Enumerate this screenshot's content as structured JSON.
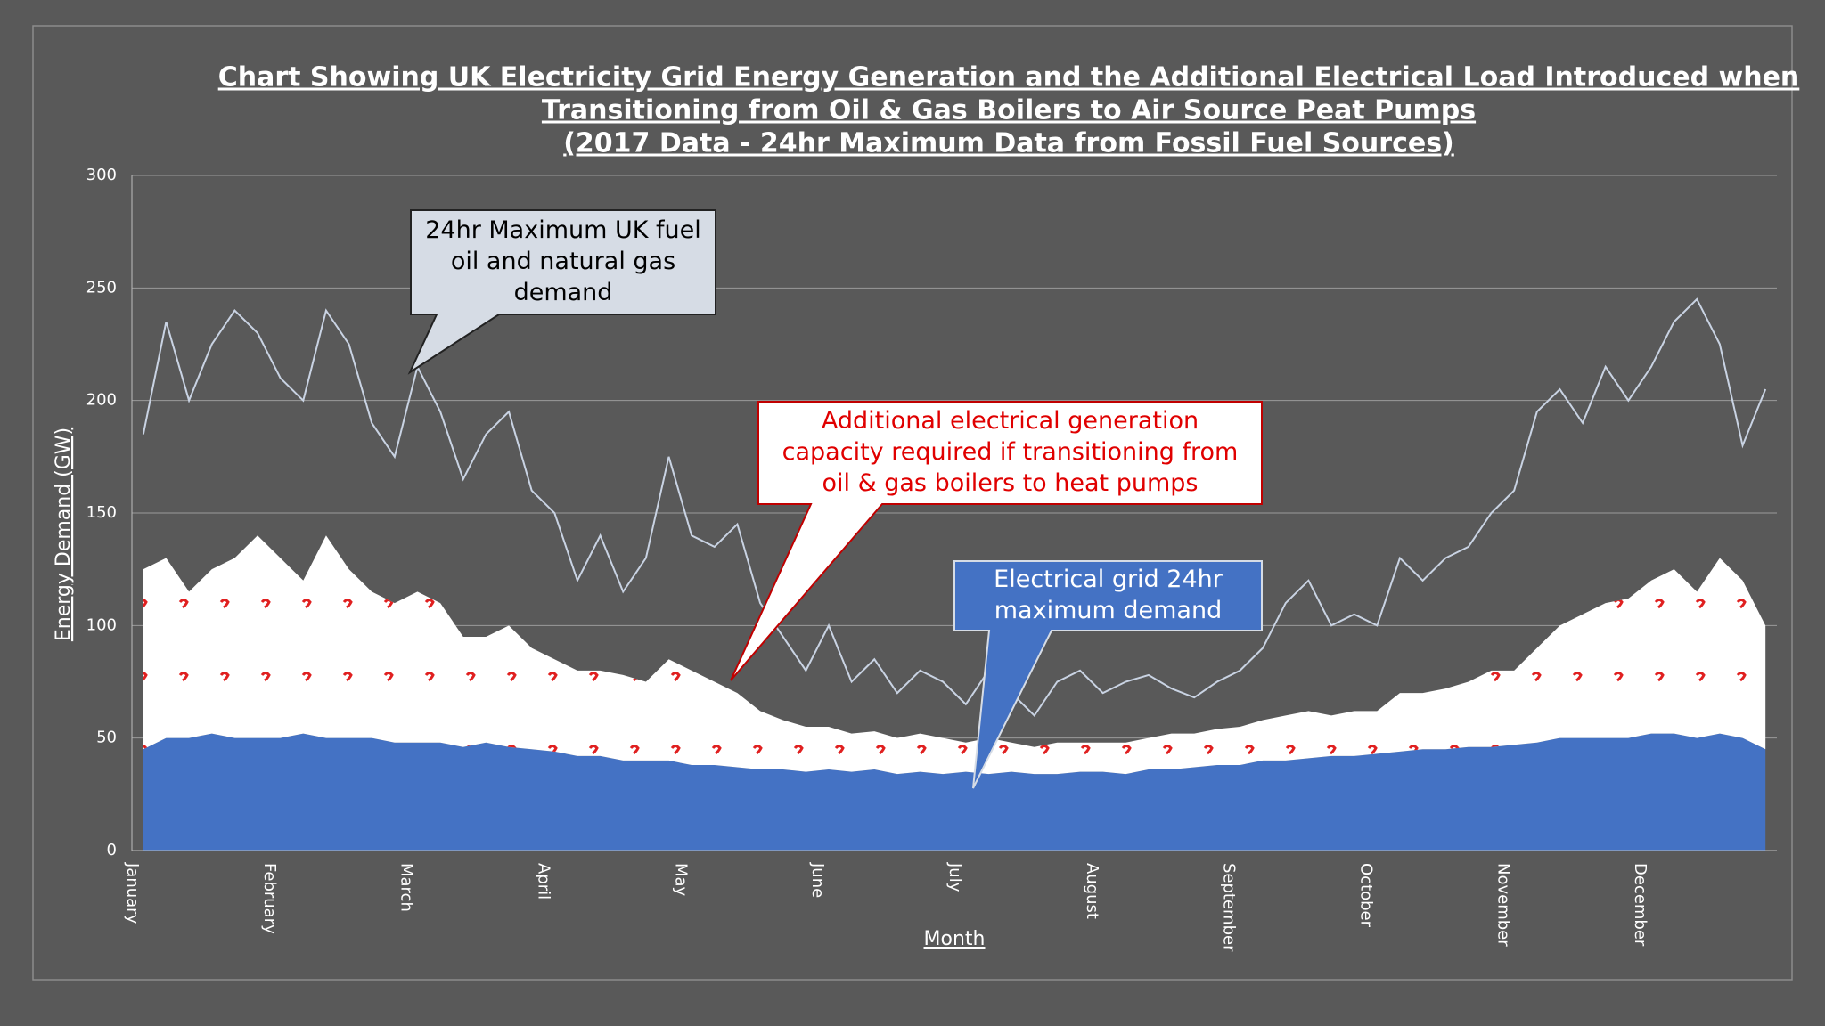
{
  "chart_data": {
    "type": "stacked-area-line",
    "title": [
      "Chart Showing UK Electricity Grid Energy Generation and the Additional Electrical Load Introduced when",
      "Transitioning from Oil & Gas Boilers to Air Source Peat Pumps",
      "(2017 Data - 24hr Maximum Data from Fossil Fuel Sources)"
    ],
    "x_label": "Month",
    "y_label": "Energy Demand (GW)",
    "categories": [
      "January",
      null,
      null,
      null,
      null,
      null,
      "February",
      null,
      null,
      null,
      null,
      null,
      "March",
      null,
      null,
      null,
      null,
      null,
      "April",
      null,
      null,
      null,
      null,
      null,
      "May",
      null,
      null,
      null,
      null,
      null,
      "June",
      null,
      null,
      null,
      null,
      null,
      "July",
      null,
      null,
      null,
      null,
      null,
      "August",
      null,
      null,
      null,
      null,
      null,
      "September",
      null,
      null,
      null,
      null,
      null,
      "October",
      null,
      null,
      null,
      null,
      null,
      "November",
      null,
      null,
      null,
      null,
      null,
      "December",
      null,
      null,
      null,
      null,
      null
    ],
    "ylim": [
      0,
      300
    ],
    "yticks": [
      0,
      50,
      100,
      150,
      200,
      250,
      300
    ],
    "grid": true,
    "series": [
      {
        "color": "#4472c4",
        "stack": true,
        "values": [
          45,
          50,
          50,
          52,
          50,
          50,
          50,
          52,
          50,
          50,
          50,
          48,
          48,
          48,
          46,
          48,
          46,
          45,
          44,
          42,
          42,
          40,
          40,
          40,
          38,
          38,
          37,
          36,
          36,
          35,
          36,
          35,
          36,
          34,
          35,
          34,
          35,
          34,
          35,
          34,
          34,
          35,
          35,
          34,
          36,
          36,
          37,
          38,
          38,
          40,
          40,
          41,
          42,
          42,
          43,
          44,
          45,
          45,
          46,
          46,
          47,
          48,
          50,
          50,
          50,
          50,
          52,
          52,
          50,
          52,
          50,
          45
        ]
      },
      {
        "color": "#ffffff",
        "stack": true,
        "values": [
          80,
          80,
          65,
          73,
          80,
          90,
          80,
          68,
          90,
          75,
          65,
          62,
          67,
          62,
          49,
          47,
          54,
          45,
          41,
          38,
          38,
          38,
          35,
          45,
          42,
          37,
          33,
          26,
          22,
          20,
          19,
          17,
          17,
          16,
          17,
          16,
          13,
          16,
          13,
          12,
          14,
          13,
          13,
          14,
          14,
          16,
          15,
          16,
          17,
          18,
          20,
          21,
          18,
          20,
          19,
          26,
          25,
          27,
          29,
          34,
          33,
          42,
          50,
          55,
          60,
          62,
          68,
          73,
          65,
          78,
          70,
          55
        ]
      },
      {
        "color": "#c9d3e3",
        "stack": false,
        "values": [
          185,
          235,
          200,
          225,
          240,
          230,
          210,
          200,
          240,
          225,
          190,
          175,
          215,
          195,
          165,
          185,
          195,
          160,
          150,
          120,
          140,
          115,
          130,
          175,
          140,
          135,
          145,
          110,
          95,
          80,
          100,
          75,
          85,
          70,
          80,
          75,
          65,
          80,
          70,
          60,
          75,
          80,
          70,
          75,
          78,
          72,
          68,
          75,
          80,
          90,
          110,
          120,
          100,
          105,
          100,
          130,
          120,
          130,
          135,
          150,
          160,
          195,
          205,
          190,
          215,
          200,
          215,
          235,
          245,
          225,
          180,
          205
        ]
      }
    ],
    "annotations": [
      {
        "text": [
          "24hr Maximum UK fuel",
          "oil and natural gas",
          "demand"
        ]
      },
      {
        "text": [
          "Additional electrical generation",
          "capacity required if transitioning from",
          "oil & gas boilers to heat pumps"
        ]
      },
      {
        "text": [
          "Electrical grid 24hr",
          "maximum demand"
        ]
      }
    ]
  }
}
